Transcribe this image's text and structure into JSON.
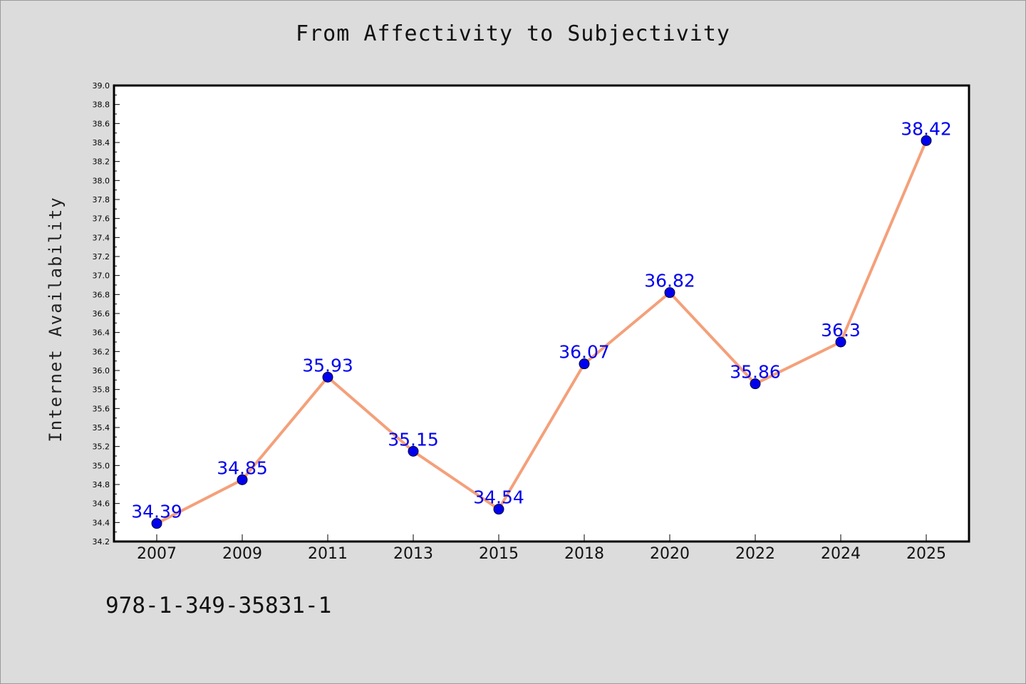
{
  "chart_data": {
    "type": "line",
    "title": "From Affectivity to Subjectivity",
    "xlabel": "",
    "ylabel": "Internet Availability",
    "categories": [
      "2007",
      "2009",
      "2011",
      "2013",
      "2015",
      "2018",
      "2020",
      "2022",
      "2024",
      "2025"
    ],
    "series": [
      {
        "values": [
          34.39,
          34.85,
          35.93,
          35.15,
          34.54,
          36.07,
          36.82,
          35.86,
          36.3,
          38.42
        ],
        "line_color": "#f4a07a",
        "marker_color": "#0000ee",
        "label_color": "#0000ee"
      }
    ],
    "ylim": [
      34.2,
      39.0
    ],
    "ytick_step": 0.2,
    "grid": false,
    "legend": "none"
  },
  "footer_text": "978-1-349-35831-1"
}
